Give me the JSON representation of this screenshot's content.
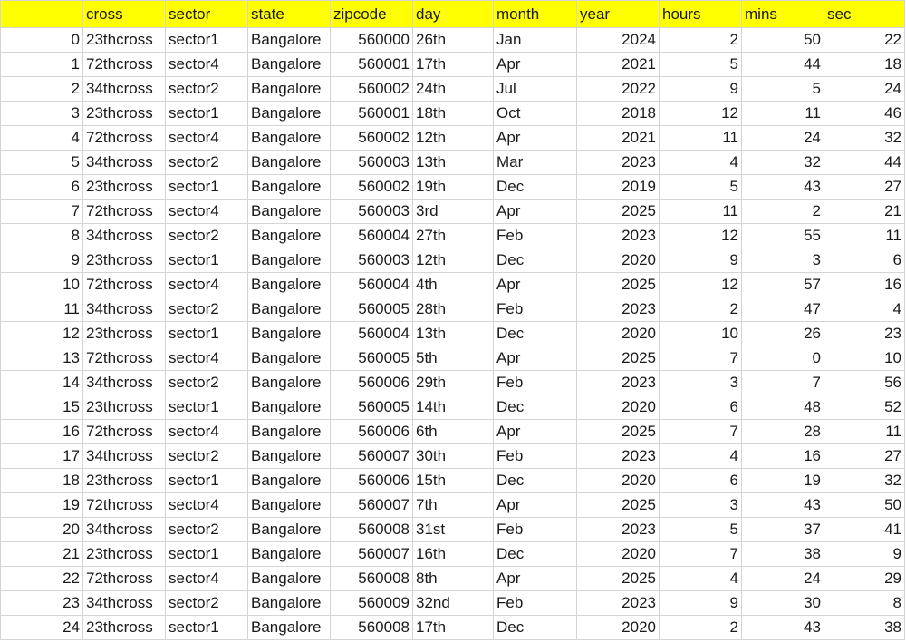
{
  "table": {
    "columns": [
      "",
      "cross",
      "sector",
      "state",
      "zipcode",
      "day",
      "month",
      "year",
      "hours",
      "mins",
      "sec"
    ],
    "rows": [
      [
        "0",
        "23thcross",
        "sector1",
        "Bangalore",
        "560000",
        "26th",
        "Jan",
        "2024",
        "2",
        "50",
        "22"
      ],
      [
        "1",
        "72thcross",
        "sector4",
        "Bangalore",
        "560001",
        "17th",
        "Apr",
        "2021",
        "5",
        "44",
        "18"
      ],
      [
        "2",
        "34thcross",
        "sector2",
        "Bangalore",
        "560002",
        "24th",
        "Jul",
        "2022",
        "9",
        "5",
        "24"
      ],
      [
        "3",
        "23thcross",
        "sector1",
        "Bangalore",
        "560001",
        "18th",
        "Oct",
        "2018",
        "12",
        "11",
        "46"
      ],
      [
        "4",
        "72thcross",
        "sector4",
        "Bangalore",
        "560002",
        "12th",
        "Apr",
        "2021",
        "11",
        "24",
        "32"
      ],
      [
        "5",
        "34thcross",
        "sector2",
        "Bangalore",
        "560003",
        "13th",
        "Mar",
        "2023",
        "4",
        "32",
        "44"
      ],
      [
        "6",
        "23thcross",
        "sector1",
        "Bangalore",
        "560002",
        "19th",
        "Dec",
        "2019",
        "5",
        "43",
        "27"
      ],
      [
        "7",
        "72thcross",
        "sector4",
        "Bangalore",
        "560003",
        "3rd",
        "Apr",
        "2025",
        "11",
        "2",
        "21"
      ],
      [
        "8",
        "34thcross",
        "sector2",
        "Bangalore",
        "560004",
        "27th",
        "Feb",
        "2023",
        "12",
        "55",
        "11"
      ],
      [
        "9",
        "23thcross",
        "sector1",
        "Bangalore",
        "560003",
        "12th",
        "Dec",
        "2020",
        "9",
        "3",
        "6"
      ],
      [
        "10",
        "72thcross",
        "sector4",
        "Bangalore",
        "560004",
        "4th",
        "Apr",
        "2025",
        "12",
        "57",
        "16"
      ],
      [
        "11",
        "34thcross",
        "sector2",
        "Bangalore",
        "560005",
        "28th",
        "Feb",
        "2023",
        "2",
        "47",
        "4"
      ],
      [
        "12",
        "23thcross",
        "sector1",
        "Bangalore",
        "560004",
        "13th",
        "Dec",
        "2020",
        "10",
        "26",
        "23"
      ],
      [
        "13",
        "72thcross",
        "sector4",
        "Bangalore",
        "560005",
        "5th",
        "Apr",
        "2025",
        "7",
        "0",
        "10"
      ],
      [
        "14",
        "34thcross",
        "sector2",
        "Bangalore",
        "560006",
        "29th",
        "Feb",
        "2023",
        "3",
        "7",
        "56"
      ],
      [
        "15",
        "23thcross",
        "sector1",
        "Bangalore",
        "560005",
        "14th",
        "Dec",
        "2020",
        "6",
        "48",
        "52"
      ],
      [
        "16",
        "72thcross",
        "sector4",
        "Bangalore",
        "560006",
        "6th",
        "Apr",
        "2025",
        "7",
        "28",
        "11"
      ],
      [
        "17",
        "34thcross",
        "sector2",
        "Bangalore",
        "560007",
        "30th",
        "Feb",
        "2023",
        "4",
        "16",
        "27"
      ],
      [
        "18",
        "23thcross",
        "sector1",
        "Bangalore",
        "560006",
        "15th",
        "Dec",
        "2020",
        "6",
        "19",
        "32"
      ],
      [
        "19",
        "72thcross",
        "sector4",
        "Bangalore",
        "560007",
        "7th",
        "Apr",
        "2025",
        "3",
        "43",
        "50"
      ],
      [
        "20",
        "34thcross",
        "sector2",
        "Bangalore",
        "560008",
        "31st",
        "Feb",
        "2023",
        "5",
        "37",
        "41"
      ],
      [
        "21",
        "23thcross",
        "sector1",
        "Bangalore",
        "560007",
        "16th",
        "Dec",
        "2020",
        "7",
        "38",
        "9"
      ],
      [
        "22",
        "72thcross",
        "sector4",
        "Bangalore",
        "560008",
        "8th",
        "Apr",
        "2025",
        "4",
        "24",
        "29"
      ],
      [
        "23",
        "34thcross",
        "sector2",
        "Bangalore",
        "560009",
        "32nd",
        "Feb",
        "2023",
        "9",
        "30",
        "8"
      ],
      [
        "24",
        "23thcross",
        "sector1",
        "Bangalore",
        "560008",
        "17th",
        "Dec",
        "2020",
        "2",
        "43",
        "38"
      ]
    ],
    "alignment": [
      "num",
      "txt",
      "txt",
      "txt",
      "num",
      "txt",
      "txt",
      "num",
      "num",
      "num",
      "num"
    ],
    "header_color": "#ffff00"
  }
}
